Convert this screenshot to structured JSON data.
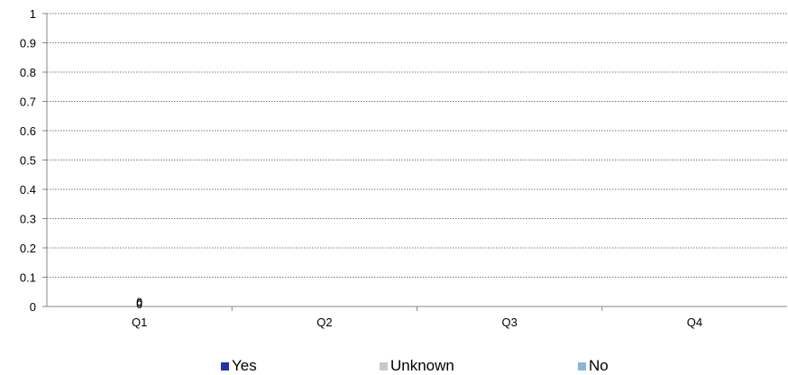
{
  "chart_data": {
    "type": "bar",
    "categories": [
      "Q1",
      "Q2",
      "Q3",
      "Q4"
    ],
    "series": [
      {
        "name": "Yes",
        "values": [
          0,
          0,
          0,
          0
        ],
        "color": "#2233aa"
      },
      {
        "name": "Unknown",
        "values": [
          0,
          0,
          0,
          0
        ],
        "color": "#c8c8c8"
      },
      {
        "name": "No",
        "values": [
          0,
          0,
          0,
          0
        ],
        "color": "#8ab4de"
      }
    ],
    "y_ticks": [
      "0",
      "0.1",
      "0.2",
      "0.3",
      "0.4",
      "0.5",
      "0.6",
      "0.7",
      "0.8",
      "0.9",
      "1"
    ],
    "ylim": [
      0,
      1
    ],
    "data_labels": [
      {
        "category": "Q1",
        "text": "0"
      },
      {
        "category": "Q1",
        "text": "0"
      },
      {
        "category": "Q1",
        "text": "0"
      }
    ],
    "title": "",
    "xlabel": "",
    "ylabel": "",
    "grid": true,
    "legend_position": "bottom"
  }
}
